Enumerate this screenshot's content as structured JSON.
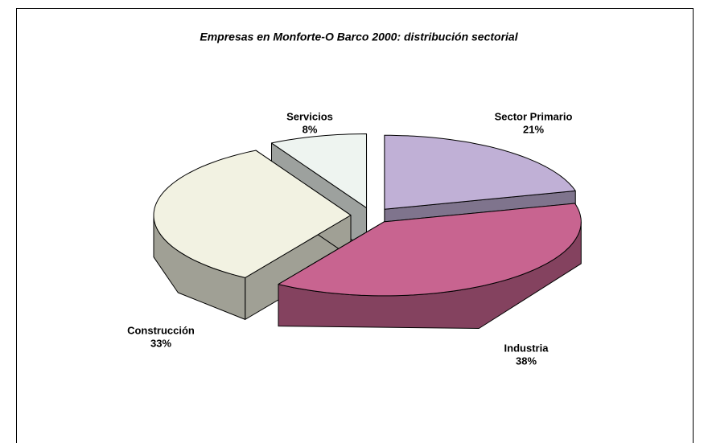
{
  "chart_data": {
    "type": "pie3d",
    "title": "Empresas en Monforte-O Barco 2000: distribución sectorial",
    "categories": [
      "Sector Primario",
      "Industria",
      "Construcción",
      "Servicios"
    ],
    "values": [
      21,
      38,
      33,
      8
    ],
    "value_labels": [
      "21%",
      "38%",
      "33%",
      "8%"
    ],
    "colors": [
      "#c0b0d6",
      "#c86490",
      "#f2f2e2",
      "#eef4f0"
    ],
    "exploded": true
  }
}
